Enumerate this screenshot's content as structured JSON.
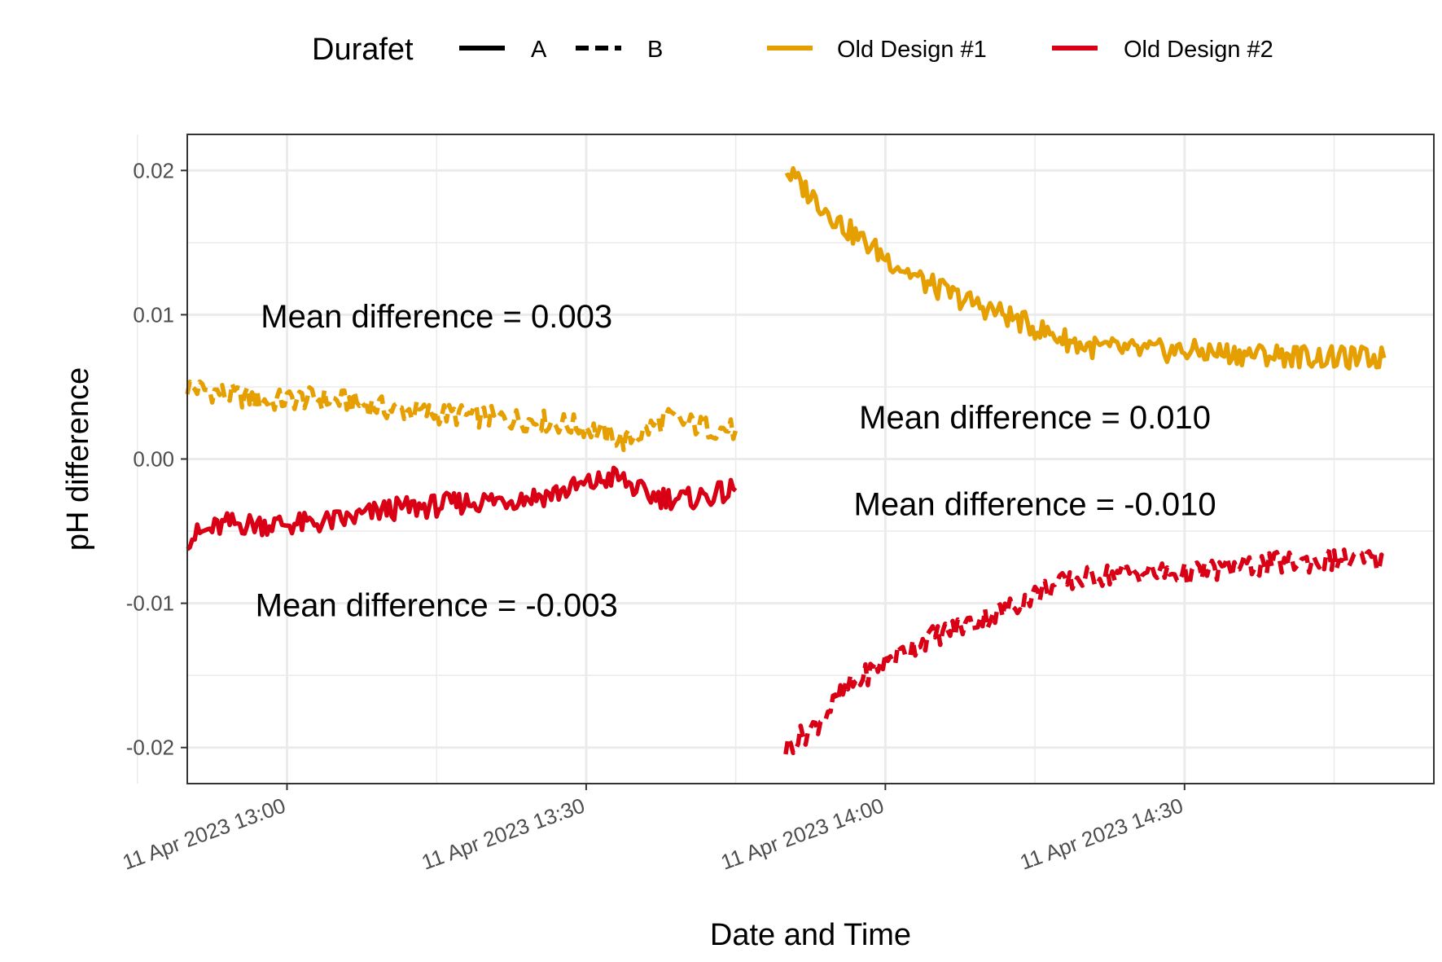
{
  "chart_data": {
    "type": "line",
    "xlabel": "Date and Time",
    "ylabel": "pH difference",
    "x_range": [
      "2023-04-11 12:50",
      "2023-04-11 14:55"
    ],
    "ylim": [
      -0.0225,
      0.0225
    ],
    "grid": true,
    "x_ticks": [
      {
        "t": "2023-04-11 13:00",
        "label": "11 Apr 2023 13:00"
      },
      {
        "t": "2023-04-11 13:30",
        "label": "11 Apr 2023 13:30"
      },
      {
        "t": "2023-04-11 14:00",
        "label": "11 Apr 2023 14:00"
      },
      {
        "t": "2023-04-11 14:30",
        "label": "11 Apr 2023 14:30"
      }
    ],
    "y_ticks": [
      {
        "v": 0.02,
        "label": "0.02"
      },
      {
        "v": 0.01,
        "label": "0.01"
      },
      {
        "v": 0.0,
        "label": "0.00"
      },
      {
        "v": -0.01,
        "label": "-0.01"
      },
      {
        "v": -0.02,
        "label": "-0.02"
      }
    ],
    "legend": {
      "placement": "top",
      "linetype_title": "Durafet",
      "linetypes": [
        {
          "label": "A",
          "dash": "solid"
        },
        {
          "label": "B",
          "dash": "dashed"
        }
      ],
      "colors": [
        {
          "label": "Old Design #1",
          "color": "#E69F00"
        },
        {
          "label": "Old Design #2",
          "color": "#D90016"
        }
      ]
    },
    "series": [
      {
        "name": "Old Design #1",
        "durafet": "B",
        "color": "#E69F00",
        "dash": "dashed",
        "points": [
          [
            "2023-04-11 12:50",
            0.005
          ],
          [
            "2023-04-11 12:54",
            0.0045
          ],
          [
            "2023-04-11 12:58",
            0.004
          ],
          [
            "2023-04-11 13:02",
            0.0042
          ],
          [
            "2023-04-11 13:06",
            0.004
          ],
          [
            "2023-04-11 13:10",
            0.0035
          ],
          [
            "2023-04-11 13:14",
            0.0032
          ],
          [
            "2023-04-11 13:18",
            0.003
          ],
          [
            "2023-04-11 13:22",
            0.0028
          ],
          [
            "2023-04-11 13:26",
            0.0026
          ],
          [
            "2023-04-11 13:30",
            0.0022
          ],
          [
            "2023-04-11 13:34",
            0.0012
          ],
          [
            "2023-04-11 13:38",
            0.0028
          ],
          [
            "2023-04-11 13:42",
            0.0022
          ],
          [
            "2023-04-11 13:45",
            0.002
          ]
        ]
      },
      {
        "name": "Old Design #2",
        "durafet": "A",
        "color": "#D90016",
        "dash": "solid",
        "points": [
          [
            "2023-04-11 12:50",
            -0.0055
          ],
          [
            "2023-04-11 12:54",
            -0.0045
          ],
          [
            "2023-04-11 12:58",
            -0.0045
          ],
          [
            "2023-04-11 13:02",
            -0.0045
          ],
          [
            "2023-04-11 13:06",
            -0.0042
          ],
          [
            "2023-04-11 13:10",
            -0.0035
          ],
          [
            "2023-04-11 13:14",
            -0.0033
          ],
          [
            "2023-04-11 13:18",
            -0.003
          ],
          [
            "2023-04-11 13:22",
            -0.0028
          ],
          [
            "2023-04-11 13:26",
            -0.0025
          ],
          [
            "2023-04-11 13:30",
            -0.0018
          ],
          [
            "2023-04-11 13:33",
            -0.0012
          ],
          [
            "2023-04-11 13:36",
            -0.0025
          ],
          [
            "2023-04-11 13:40",
            -0.0028
          ],
          [
            "2023-04-11 13:45",
            -0.0022
          ]
        ]
      },
      {
        "name": "Old Design #1",
        "durafet": "A",
        "color": "#E69F00",
        "dash": "solid",
        "points": [
          [
            "2023-04-11 13:50",
            0.02
          ],
          [
            "2023-04-11 13:53",
            0.018
          ],
          [
            "2023-04-11 13:56",
            0.016
          ],
          [
            "2023-04-11 14:00",
            0.014
          ],
          [
            "2023-04-11 14:04",
            0.0122
          ],
          [
            "2023-04-11 14:08",
            0.011
          ],
          [
            "2023-04-11 14:12",
            0.01
          ],
          [
            "2023-04-11 14:16",
            0.0088
          ],
          [
            "2023-04-11 14:20",
            0.0078
          ],
          [
            "2023-04-11 14:25",
            0.0075
          ],
          [
            "2023-04-11 14:30",
            0.0075
          ],
          [
            "2023-04-11 14:35",
            0.0073
          ],
          [
            "2023-04-11 14:40",
            0.0072
          ],
          [
            "2023-04-11 14:45",
            0.007
          ],
          [
            "2023-04-11 14:50",
            0.007
          ]
        ]
      },
      {
        "name": "Old Design #2",
        "durafet": "B",
        "color": "#D90016",
        "dash": "dashed",
        "points": [
          [
            "2023-04-11 13:50",
            -0.02
          ],
          [
            "2023-04-11 13:53",
            -0.0185
          ],
          [
            "2023-04-11 13:56",
            -0.016
          ],
          [
            "2023-04-11 14:00",
            -0.014
          ],
          [
            "2023-04-11 14:04",
            -0.0125
          ],
          [
            "2023-04-11 14:08",
            -0.0115
          ],
          [
            "2023-04-11 14:12",
            -0.0105
          ],
          [
            "2023-04-11 14:16",
            -0.009
          ],
          [
            "2023-04-11 14:20",
            -0.0082
          ],
          [
            "2023-04-11 14:25",
            -0.0078
          ],
          [
            "2023-04-11 14:30",
            -0.008
          ],
          [
            "2023-04-11 14:35",
            -0.0075
          ],
          [
            "2023-04-11 14:40",
            -0.0072
          ],
          [
            "2023-04-11 14:45",
            -0.007
          ],
          [
            "2023-04-11 14:50",
            -0.007
          ]
        ]
      }
    ],
    "annotations": [
      {
        "text": "Mean difference = 0.003",
        "t": "2023-04-11 13:15",
        "v": 0.0099
      },
      {
        "text": "Mean difference = -0.003",
        "t": "2023-04-11 13:15",
        "v": -0.0101
      },
      {
        "text": "Mean difference = 0.010",
        "t": "2023-04-11 14:15",
        "v": 0.0029
      },
      {
        "text": "Mean difference = -0.010",
        "t": "2023-04-11 14:15",
        "v": -0.0031
      }
    ]
  }
}
